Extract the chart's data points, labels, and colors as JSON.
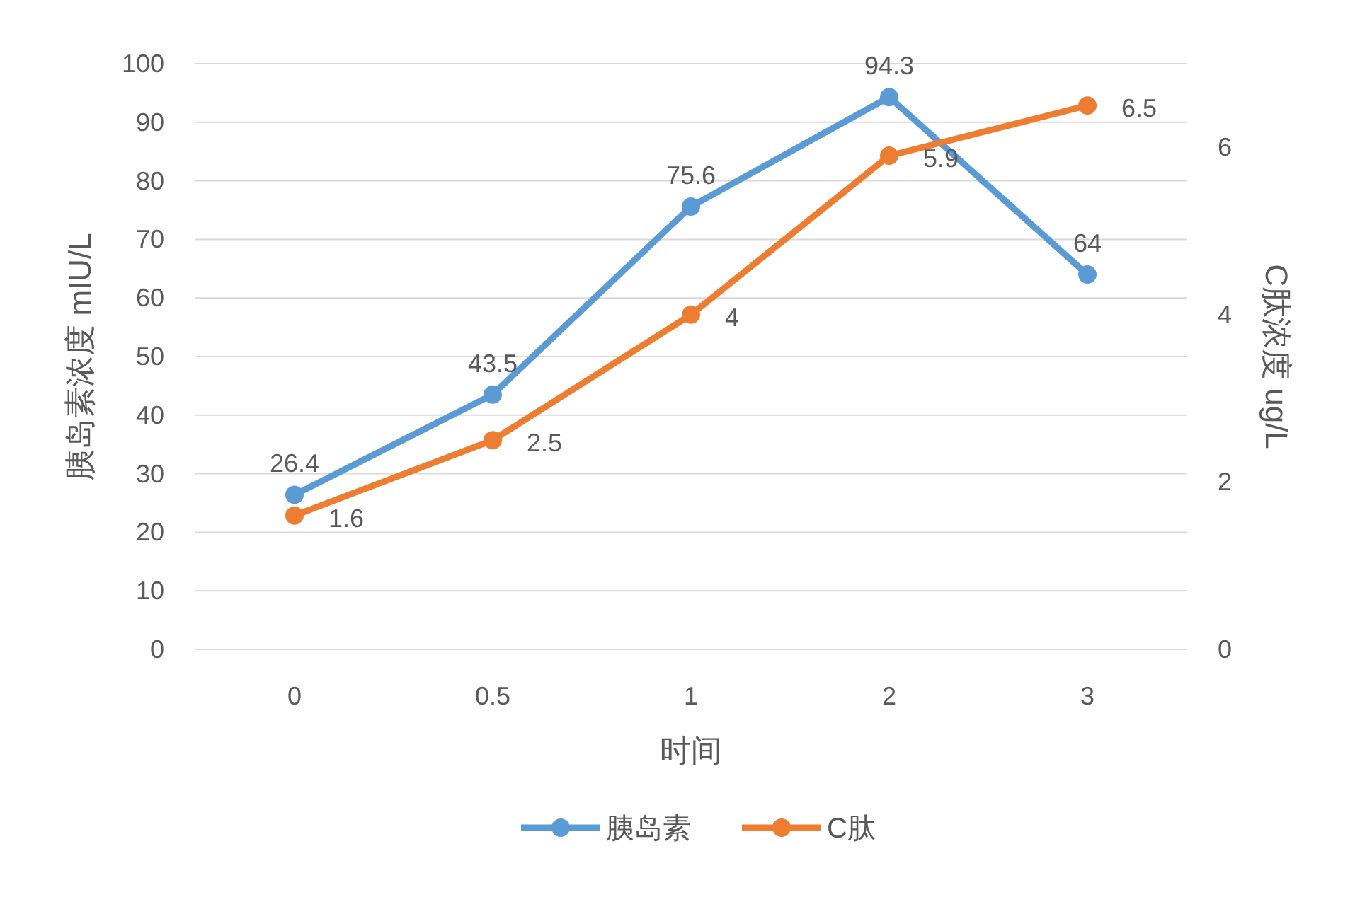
{
  "chart_data": {
    "type": "line",
    "xlabel": "时间",
    "ylabel": "胰岛素浓度   mIU/L",
    "y2label": "C肽浓度   ug/L",
    "categories": [
      "0",
      "0.5",
      "1",
      "2",
      "3"
    ],
    "series": [
      {
        "name": "胰岛素",
        "color": "#5b9bd5",
        "values": [
          26.4,
          43.5,
          75.6,
          94.3,
          64
        ]
      },
      {
        "name": "C肽",
        "color": "#ed7d31",
        "values": [
          1.6,
          2.5,
          4,
          5.9,
          6.5
        ],
        "axis": "y2"
      }
    ],
    "ylim": [
      0,
      100
    ],
    "yticks": [
      0,
      10,
      20,
      30,
      40,
      50,
      60,
      70,
      80,
      90,
      100
    ],
    "y2lim": [
      0,
      7
    ],
    "y2ticks": [
      0,
      2,
      4,
      6
    ],
    "grid": "y",
    "legend": "bottom",
    "marker": "circle",
    "data_labels": true
  }
}
